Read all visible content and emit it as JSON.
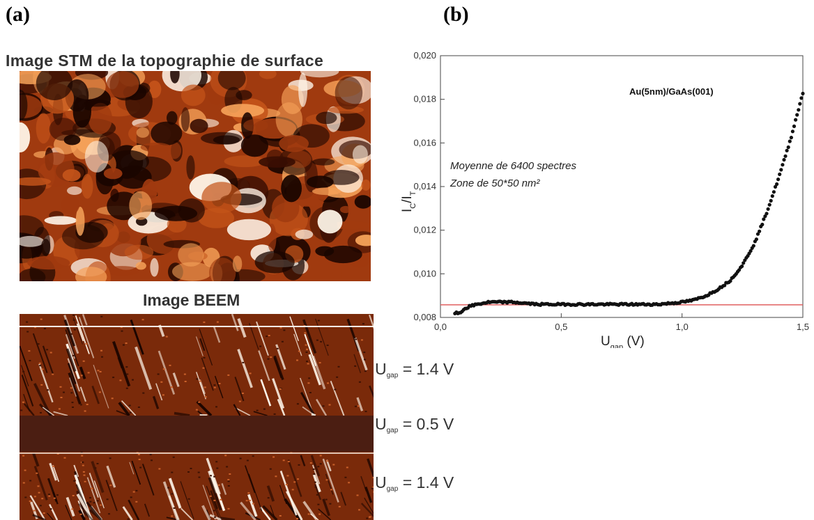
{
  "panels": {
    "a_label": "(a)",
    "b_label": "(b)"
  },
  "left": {
    "stm_title": "Image STM de la topographie de surface",
    "beem_title": "Image BEEM",
    "ugap_labels": [
      {
        "main": "U",
        "sub": "gap",
        "value": "= 1.4 V"
      },
      {
        "main": "U",
        "sub": "gap",
        "value": "= 0.5 V"
      },
      {
        "main": "U",
        "sub": "gap",
        "value": "= 1.4 V"
      }
    ],
    "colors": {
      "dark": "#1a0500",
      "mid": "#a03a0f",
      "bright": "#f6a35a",
      "white": "#fff6ea"
    }
  },
  "chart_data": {
    "type": "scatter",
    "title": "Au(5nm)/GaAs(001)",
    "xlabel": "U",
    "xlabel_sub": "gap",
    "xlabel_unit": " (V)",
    "ylabel": "I",
    "ylabel_sub1": "C",
    "ylabel_mid": "/I",
    "ylabel_sub2": "T",
    "xlim": [
      0.0,
      1.5
    ],
    "ylim": [
      0.008,
      0.02
    ],
    "x_ticks": [
      "0,0",
      "0,5",
      "1,0",
      "1,5"
    ],
    "y_ticks": [
      "0,008",
      "0,010",
      "0,012",
      "0,014",
      "0,016",
      "0,018",
      "0,020"
    ],
    "annotations": [
      "Moyenne de 6400 spectres",
      "Zone de 50*50 nm²"
    ],
    "baseline": {
      "y": 0.00858,
      "color": "#e06060"
    },
    "series": [
      {
        "color": "#111111",
        "points": [
          [
            0.06,
            0.0082
          ],
          [
            0.08,
            0.0082
          ],
          [
            0.1,
            0.0084
          ],
          [
            0.12,
            0.0085
          ],
          [
            0.15,
            0.0086
          ],
          [
            0.2,
            0.0087
          ],
          [
            0.3,
            0.0087
          ],
          [
            0.4,
            0.0086
          ],
          [
            0.5,
            0.0086
          ],
          [
            0.6,
            0.0086
          ],
          [
            0.7,
            0.0086
          ],
          [
            0.8,
            0.0086
          ],
          [
            0.9,
            0.0086
          ],
          [
            1.0,
            0.0087
          ],
          [
            1.05,
            0.0088
          ],
          [
            1.1,
            0.009
          ],
          [
            1.15,
            0.0093
          ],
          [
            1.2,
            0.0097
          ],
          [
            1.25,
            0.0104
          ],
          [
            1.3,
            0.0114
          ],
          [
            1.35,
            0.0128
          ],
          [
            1.4,
            0.0144
          ],
          [
            1.45,
            0.0162
          ],
          [
            1.5,
            0.0183
          ]
        ]
      }
    ]
  }
}
